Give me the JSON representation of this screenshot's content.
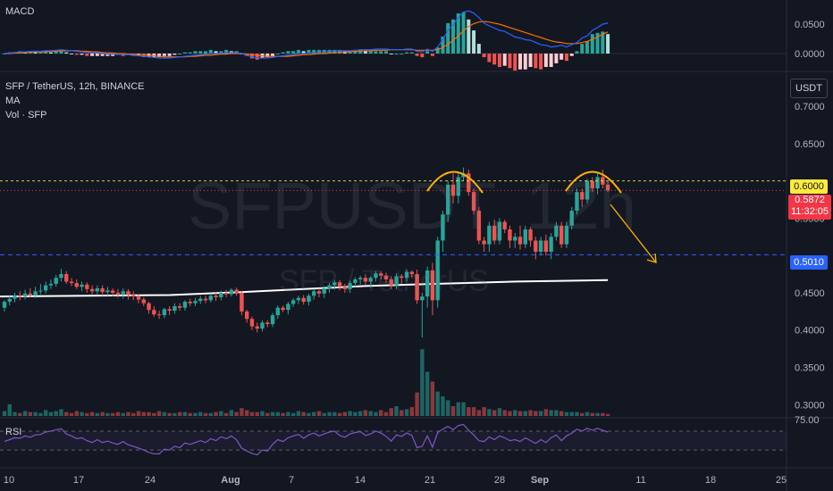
{
  "header": {
    "macd_label": "MACD",
    "symbol_line": "SFP / TetherUS, 12h, BINANCE",
    "ma_label": "MA",
    "vol_label": "Vol · SFP",
    "rsi_label": "RSI",
    "currency_button": "USDT"
  },
  "watermark": {
    "main": "SFPUSDT, 12h",
    "sub": "SFP / TetherUS"
  },
  "price_axis": [
    "0.7000",
    "0.6500",
    "0.5500",
    "0.4500",
    "0.4000",
    "0.3500",
    "0.3000"
  ],
  "macd_axis": [
    "0.0500",
    "0.0000"
  ],
  "rsi_axis": [
    "75.00"
  ],
  "time_axis": [
    "10",
    "17",
    "24",
    "Aug",
    "7",
    "14",
    "21",
    "28",
    "Sep",
    "11",
    "18",
    "25"
  ],
  "markers": {
    "resistance": {
      "value": "0.6000",
      "color": "#ffeb3b"
    },
    "current": {
      "value": "0.5872",
      "countdown": "11:32:05",
      "color": "#f23645"
    },
    "support": {
      "value": "0.5010",
      "color": "#2962ff"
    }
  },
  "colors": {
    "up": "#26a69a",
    "down": "#ef5350",
    "ma": "#ffffff",
    "rsi": "#7e57c2",
    "macd": "#2962ff",
    "signal": "#ff6d00",
    "annotation": "#ffb300"
  },
  "chart_data": {
    "type": "candlestick",
    "pattern": "double top",
    "price_range": [
      0.28,
      0.73
    ],
    "x": [
      "Jul 10 am",
      "Jul 10 pm",
      "Jul 11 am",
      "Jul 11 pm",
      "Jul 12 am",
      "Jul 12 pm",
      "Jul 13 am",
      "Jul 13 pm",
      "Jul 14 am",
      "Jul 14 pm",
      "Jul 15 am",
      "Jul 15 pm",
      "Jul 16 am",
      "Jul 16 pm",
      "Jul 17 am",
      "Jul 17 pm",
      "Jul 18 am",
      "Jul 18 pm",
      "Jul 19 am",
      "Jul 19 pm",
      "Jul 20 am",
      "Jul 20 pm",
      "Jul 21 am",
      "Jul 21 pm",
      "Jul 22 am",
      "Jul 22 pm",
      "Jul 23 am",
      "Jul 23 pm",
      "Jul 24 am",
      "Jul 24 pm",
      "Jul 25 am",
      "Jul 25 pm",
      "Jul 26 am",
      "Jul 26 pm",
      "Jul 27 am",
      "Jul 27 pm",
      "Jul 28 am",
      "Jul 28 pm",
      "Jul 29 am",
      "Jul 29 pm",
      "Jul 30 am",
      "Jul 30 pm",
      "Jul 31 am",
      "Jul 31 pm",
      "Aug 1 am",
      "Aug 1 pm",
      "Aug 2 am",
      "Aug 2 pm",
      "Aug 3 am",
      "Aug 3 pm",
      "Aug 4 am",
      "Aug 4 pm",
      "Aug 5 am",
      "Aug 5 pm",
      "Aug 6 am",
      "Aug 6 pm",
      "Aug 7 am",
      "Aug 7 pm",
      "Aug 8 am",
      "Aug 8 pm",
      "Aug 9 am",
      "Aug 9 pm",
      "Aug 10 am",
      "Aug 10 pm",
      "Aug 11 am",
      "Aug 11 pm",
      "Aug 12 am",
      "Aug 12 pm",
      "Aug 13 am",
      "Aug 13 pm",
      "Aug 14 am",
      "Aug 14 pm",
      "Aug 15 am",
      "Aug 15 pm",
      "Aug 16 am",
      "Aug 16 pm",
      "Aug 17 am",
      "Aug 17 pm",
      "Aug 18 am",
      "Aug 18 pm",
      "Aug 19 am",
      "Aug 19 pm",
      "Aug 20 am",
      "Aug 20 pm",
      "Aug 21 am",
      "Aug 21 pm",
      "Aug 22 am",
      "Aug 22 pm",
      "Aug 23 am",
      "Aug 23 pm",
      "Aug 24 am",
      "Aug 24 pm",
      "Aug 25 am",
      "Aug 25 pm",
      "Aug 26 am",
      "Aug 26 pm",
      "Aug 27 am",
      "Aug 27 pm",
      "Aug 28 am",
      "Aug 28 pm",
      "Aug 29 am",
      "Aug 29 pm",
      "Aug 30 am",
      "Aug 30 pm",
      "Aug 31 am",
      "Aug 31 pm",
      "Sep 1 am",
      "Sep 1 pm",
      "Sep 2 am",
      "Sep 2 pm",
      "Sep 3 am",
      "Sep 3 pm",
      "Sep 4 am",
      "Sep 4 pm",
      "Sep 5 am",
      "Sep 5 pm",
      "Sep 6 am",
      "Sep 6 pm"
    ],
    "open": [
      0.43,
      0.438,
      0.442,
      0.446,
      0.445,
      0.449,
      0.447,
      0.452,
      0.453,
      0.46,
      0.462,
      0.47,
      0.475,
      0.465,
      0.463,
      0.458,
      0.461,
      0.455,
      0.452,
      0.456,
      0.451,
      0.453,
      0.45,
      0.448,
      0.452,
      0.447,
      0.445,
      0.441,
      0.436,
      0.427,
      0.421,
      0.42,
      0.428,
      0.426,
      0.432,
      0.43,
      0.438,
      0.436,
      0.439,
      0.442,
      0.44,
      0.446,
      0.444,
      0.45,
      0.448,
      0.454,
      0.45,
      0.425,
      0.415,
      0.405,
      0.402,
      0.41,
      0.408,
      0.42,
      0.43,
      0.427,
      0.435,
      0.44,
      0.443,
      0.438,
      0.446,
      0.452,
      0.449,
      0.456,
      0.46,
      0.464,
      0.458,
      0.455,
      0.463,
      0.468,
      0.47,
      0.465,
      0.47,
      0.476,
      0.473,
      0.468,
      0.46,
      0.472,
      0.47,
      0.478,
      0.475,
      0.44,
      0.445,
      0.48,
      0.44,
      0.52,
      0.555,
      0.595,
      0.58,
      0.605,
      0.61,
      0.585,
      0.56,
      0.52,
      0.515,
      0.54,
      0.52,
      0.545,
      0.535,
      0.52,
      0.525,
      0.515,
      0.535,
      0.52,
      0.505,
      0.52,
      0.505,
      0.525,
      0.54,
      0.515,
      0.54,
      0.56,
      0.585,
      0.575,
      0.6,
      0.59,
      0.605,
      0.595
    ],
    "high": [
      0.44,
      0.447,
      0.45,
      0.452,
      0.454,
      0.456,
      0.458,
      0.462,
      0.465,
      0.468,
      0.474,
      0.482,
      0.479,
      0.47,
      0.468,
      0.465,
      0.464,
      0.46,
      0.46,
      0.46,
      0.458,
      0.456,
      0.455,
      0.456,
      0.455,
      0.452,
      0.448,
      0.444,
      0.438,
      0.432,
      0.426,
      0.43,
      0.432,
      0.436,
      0.436,
      0.44,
      0.442,
      0.443,
      0.446,
      0.446,
      0.449,
      0.45,
      0.453,
      0.454,
      0.456,
      0.457,
      0.452,
      0.427,
      0.418,
      0.41,
      0.413,
      0.413,
      0.423,
      0.433,
      0.433,
      0.438,
      0.443,
      0.446,
      0.447,
      0.449,
      0.455,
      0.456,
      0.459,
      0.463,
      0.467,
      0.467,
      0.462,
      0.466,
      0.471,
      0.473,
      0.475,
      0.472,
      0.479,
      0.479,
      0.477,
      0.472,
      0.476,
      0.475,
      0.481,
      0.48,
      0.481,
      0.45,
      0.485,
      0.49,
      0.525,
      0.56,
      0.6,
      0.61,
      0.612,
      0.618,
      0.615,
      0.59,
      0.565,
      0.525,
      0.545,
      0.548,
      0.55,
      0.548,
      0.54,
      0.53,
      0.54,
      0.54,
      0.538,
      0.525,
      0.525,
      0.528,
      0.53,
      0.545,
      0.545,
      0.545,
      0.565,
      0.59,
      0.59,
      0.603,
      0.605,
      0.61,
      0.615,
      0.6
    ],
    "low": [
      0.425,
      0.433,
      0.437,
      0.44,
      0.441,
      0.444,
      0.443,
      0.448,
      0.449,
      0.455,
      0.458,
      0.465,
      0.462,
      0.459,
      0.455,
      0.452,
      0.45,
      0.448,
      0.448,
      0.446,
      0.446,
      0.445,
      0.443,
      0.442,
      0.441,
      0.44,
      0.436,
      0.432,
      0.422,
      0.418,
      0.415,
      0.416,
      0.42,
      0.422,
      0.426,
      0.426,
      0.432,
      0.432,
      0.435,
      0.436,
      0.437,
      0.439,
      0.44,
      0.444,
      0.445,
      0.446,
      0.42,
      0.41,
      0.4,
      0.397,
      0.398,
      0.404,
      0.404,
      0.415,
      0.424,
      0.421,
      0.431,
      0.435,
      0.434,
      0.433,
      0.441,
      0.444,
      0.443,
      0.45,
      0.454,
      0.453,
      0.45,
      0.45,
      0.458,
      0.461,
      0.461,
      0.457,
      0.465,
      0.468,
      0.463,
      0.455,
      0.455,
      0.462,
      0.465,
      0.47,
      0.435,
      0.39,
      0.43,
      0.42,
      0.43,
      0.505,
      0.545,
      0.57,
      0.57,
      0.6,
      0.58,
      0.555,
      0.515,
      0.505,
      0.505,
      0.515,
      0.515,
      0.53,
      0.51,
      0.51,
      0.508,
      0.51,
      0.512,
      0.495,
      0.5,
      0.5,
      0.495,
      0.52,
      0.51,
      0.51,
      0.535,
      0.555,
      0.565,
      0.57,
      0.585,
      0.582,
      0.59,
      0.585
    ],
    "close": [
      0.438,
      0.442,
      0.446,
      0.445,
      0.449,
      0.447,
      0.452,
      0.453,
      0.46,
      0.462,
      0.47,
      0.475,
      0.465,
      0.463,
      0.458,
      0.461,
      0.455,
      0.452,
      0.456,
      0.451,
      0.453,
      0.45,
      0.448,
      0.452,
      0.447,
      0.445,
      0.441,
      0.436,
      0.427,
      0.421,
      0.42,
      0.428,
      0.426,
      0.432,
      0.43,
      0.438,
      0.436,
      0.439,
      0.442,
      0.44,
      0.446,
      0.444,
      0.45,
      0.448,
      0.454,
      0.45,
      0.425,
      0.415,
      0.405,
      0.402,
      0.41,
      0.408,
      0.42,
      0.43,
      0.427,
      0.435,
      0.44,
      0.443,
      0.438,
      0.446,
      0.452,
      0.449,
      0.456,
      0.46,
      0.464,
      0.458,
      0.455,
      0.463,
      0.468,
      0.47,
      0.465,
      0.47,
      0.476,
      0.473,
      0.468,
      0.46,
      0.472,
      0.47,
      0.478,
      0.475,
      0.44,
      0.445,
      0.48,
      0.44,
      0.52,
      0.555,
      0.595,
      0.58,
      0.605,
      0.61,
      0.585,
      0.56,
      0.52,
      0.515,
      0.54,
      0.52,
      0.545,
      0.535,
      0.52,
      0.525,
      0.515,
      0.535,
      0.52,
      0.505,
      0.52,
      0.505,
      0.525,
      0.54,
      0.515,
      0.54,
      0.56,
      0.585,
      0.575,
      0.6,
      0.59,
      0.605,
      0.595,
      0.5872
    ],
    "volume": [
      5,
      12,
      4,
      3,
      5,
      4,
      4,
      3,
      6,
      4,
      5,
      7,
      4,
      3,
      5,
      4,
      3,
      4,
      3,
      4,
      3,
      3,
      4,
      3,
      4,
      3,
      5,
      4,
      4,
      3,
      5,
      4,
      3,
      3,
      4,
      4,
      3,
      3,
      4,
      3,
      3,
      4,
      5,
      3,
      6,
      4,
      8,
      6,
      4,
      4,
      5,
      3,
      4,
      4,
      3,
      4,
      3,
      5,
      4,
      3,
      4,
      5,
      3,
      4,
      4,
      3,
      4,
      5,
      4,
      5,
      6,
      5,
      4,
      6,
      4,
      8,
      10,
      6,
      7,
      9,
      24,
      68,
      45,
      35,
      25,
      20,
      16,
      10,
      14,
      14,
      9,
      9,
      6,
      9,
      7,
      6,
      8,
      6,
      5,
      6,
      5,
      5,
      6,
      5,
      5,
      7,
      6,
      6,
      5,
      4,
      4,
      4,
      3,
      4,
      3,
      3,
      3,
      2
    ],
    "ma": [
      0.447,
      0.451,
      0.455,
      0.459,
      0.462,
      0.465,
      0.467
    ],
    "ma_x": [
      0.28,
      0.4,
      0.5,
      0.6,
      0.72,
      0.85,
      1.0
    ],
    "rsi": [
      48,
      52,
      56,
      55,
      60,
      57,
      62,
      63,
      68,
      70,
      73,
      75,
      64,
      60,
      54,
      56,
      50,
      46,
      52,
      46,
      49,
      45,
      42,
      48,
      41,
      38,
      34,
      30,
      25,
      22,
      22,
      32,
      30,
      38,
      35,
      45,
      42,
      46,
      50,
      46,
      54,
      50,
      58,
      54,
      60,
      52,
      34,
      28,
      23,
      20,
      30,
      28,
      42,
      52,
      48,
      56,
      60,
      63,
      55,
      62,
      66,
      60,
      64,
      68,
      70,
      61,
      57,
      64,
      67,
      69,
      61,
      64,
      70,
      66,
      59,
      49,
      62,
      59,
      66,
      61,
      35,
      38,
      60,
      36,
      67,
      74,
      80,
      73,
      82,
      84,
      72,
      62,
      50,
      48,
      58,
      52,
      60,
      56,
      50,
      52,
      48,
      56,
      50,
      44,
      52,
      46,
      56,
      62,
      50,
      60,
      66,
      74,
      70,
      76,
      72,
      76,
      72,
      68
    ],
    "macd": [
      0,
      0.001,
      0.002,
      0.003,
      0.003,
      0.004,
      0.004,
      0.004,
      0.005,
      0.005,
      0.006,
      0.007,
      0.006,
      0.005,
      0.004,
      0.003,
      0.002,
      0.001,
      0.001,
      0,
      -0.001,
      -0.001,
      -0.001,
      -0.002,
      -0.002,
      -0.003,
      -0.004,
      -0.005,
      -0.006,
      -0.007,
      -0.008,
      -0.008,
      -0.008,
      -0.007,
      -0.006,
      -0.005,
      -0.004,
      -0.003,
      -0.002,
      -0.001,
      0,
      0,
      0.001,
      0.002,
      0.002,
      0.002,
      0,
      -0.003,
      -0.006,
      -0.008,
      -0.008,
      -0.008,
      -0.007,
      -0.005,
      -0.004,
      -0.003,
      -0.002,
      0,
      0,
      0.001,
      0.002,
      0.003,
      0.003,
      0.004,
      0.005,
      0.005,
      0.005,
      0.005,
      0.006,
      0.007,
      0.007,
      0.007,
      0.008,
      0.008,
      0.008,
      0.007,
      0.007,
      0.007,
      0.008,
      0.008,
      0.004,
      0.003,
      0.008,
      0.004,
      0.012,
      0.025,
      0.042,
      0.052,
      0.065,
      0.075,
      0.077,
      0.073,
      0.065,
      0.055,
      0.05,
      0.046,
      0.042,
      0.04,
      0.035,
      0.03,
      0.028,
      0.025,
      0.024,
      0.02,
      0.016,
      0.015,
      0.012,
      0.013,
      0.015,
      0.012,
      0.016,
      0.02,
      0.028,
      0.032,
      0.042,
      0.047,
      0.053,
      0.055
    ],
    "signal": [
      0,
      0,
      0.001,
      0.001,
      0.002,
      0.002,
      0.003,
      0.003,
      0.003,
      0.004,
      0.004,
      0.005,
      0.005,
      0.005,
      0.005,
      0.004,
      0.004,
      0.003,
      0.003,
      0.002,
      0.001,
      0.001,
      0,
      0,
      -0.001,
      -0.001,
      -0.002,
      -0.002,
      -0.003,
      -0.004,
      -0.005,
      -0.006,
      -0.006,
      -0.006,
      -0.006,
      -0.006,
      -0.005,
      -0.005,
      -0.004,
      -0.003,
      -0.003,
      -0.002,
      -0.001,
      -0.001,
      0,
      0,
      0,
      -0.001,
      -0.002,
      -0.003,
      -0.004,
      -0.005,
      -0.005,
      -0.005,
      -0.005,
      -0.005,
      -0.004,
      -0.003,
      -0.002,
      -0.002,
      -0.001,
      0,
      0,
      0.001,
      0.002,
      0.002,
      0.003,
      0.003,
      0.004,
      0.004,
      0.005,
      0.005,
      0.006,
      0.006,
      0.006,
      0.007,
      0.007,
      0.007,
      0.007,
      0.007,
      0.006,
      0.006,
      0.006,
      0.006,
      0.007,
      0.011,
      0.017,
      0.024,
      0.032,
      0.041,
      0.049,
      0.054,
      0.057,
      0.058,
      0.057,
      0.055,
      0.053,
      0.05,
      0.047,
      0.044,
      0.041,
      0.038,
      0.035,
      0.032,
      0.029,
      0.026,
      0.023,
      0.021,
      0.02,
      0.018,
      0.018,
      0.018,
      0.02,
      0.022,
      0.026,
      0.03,
      0.035,
      0.039
    ]
  }
}
